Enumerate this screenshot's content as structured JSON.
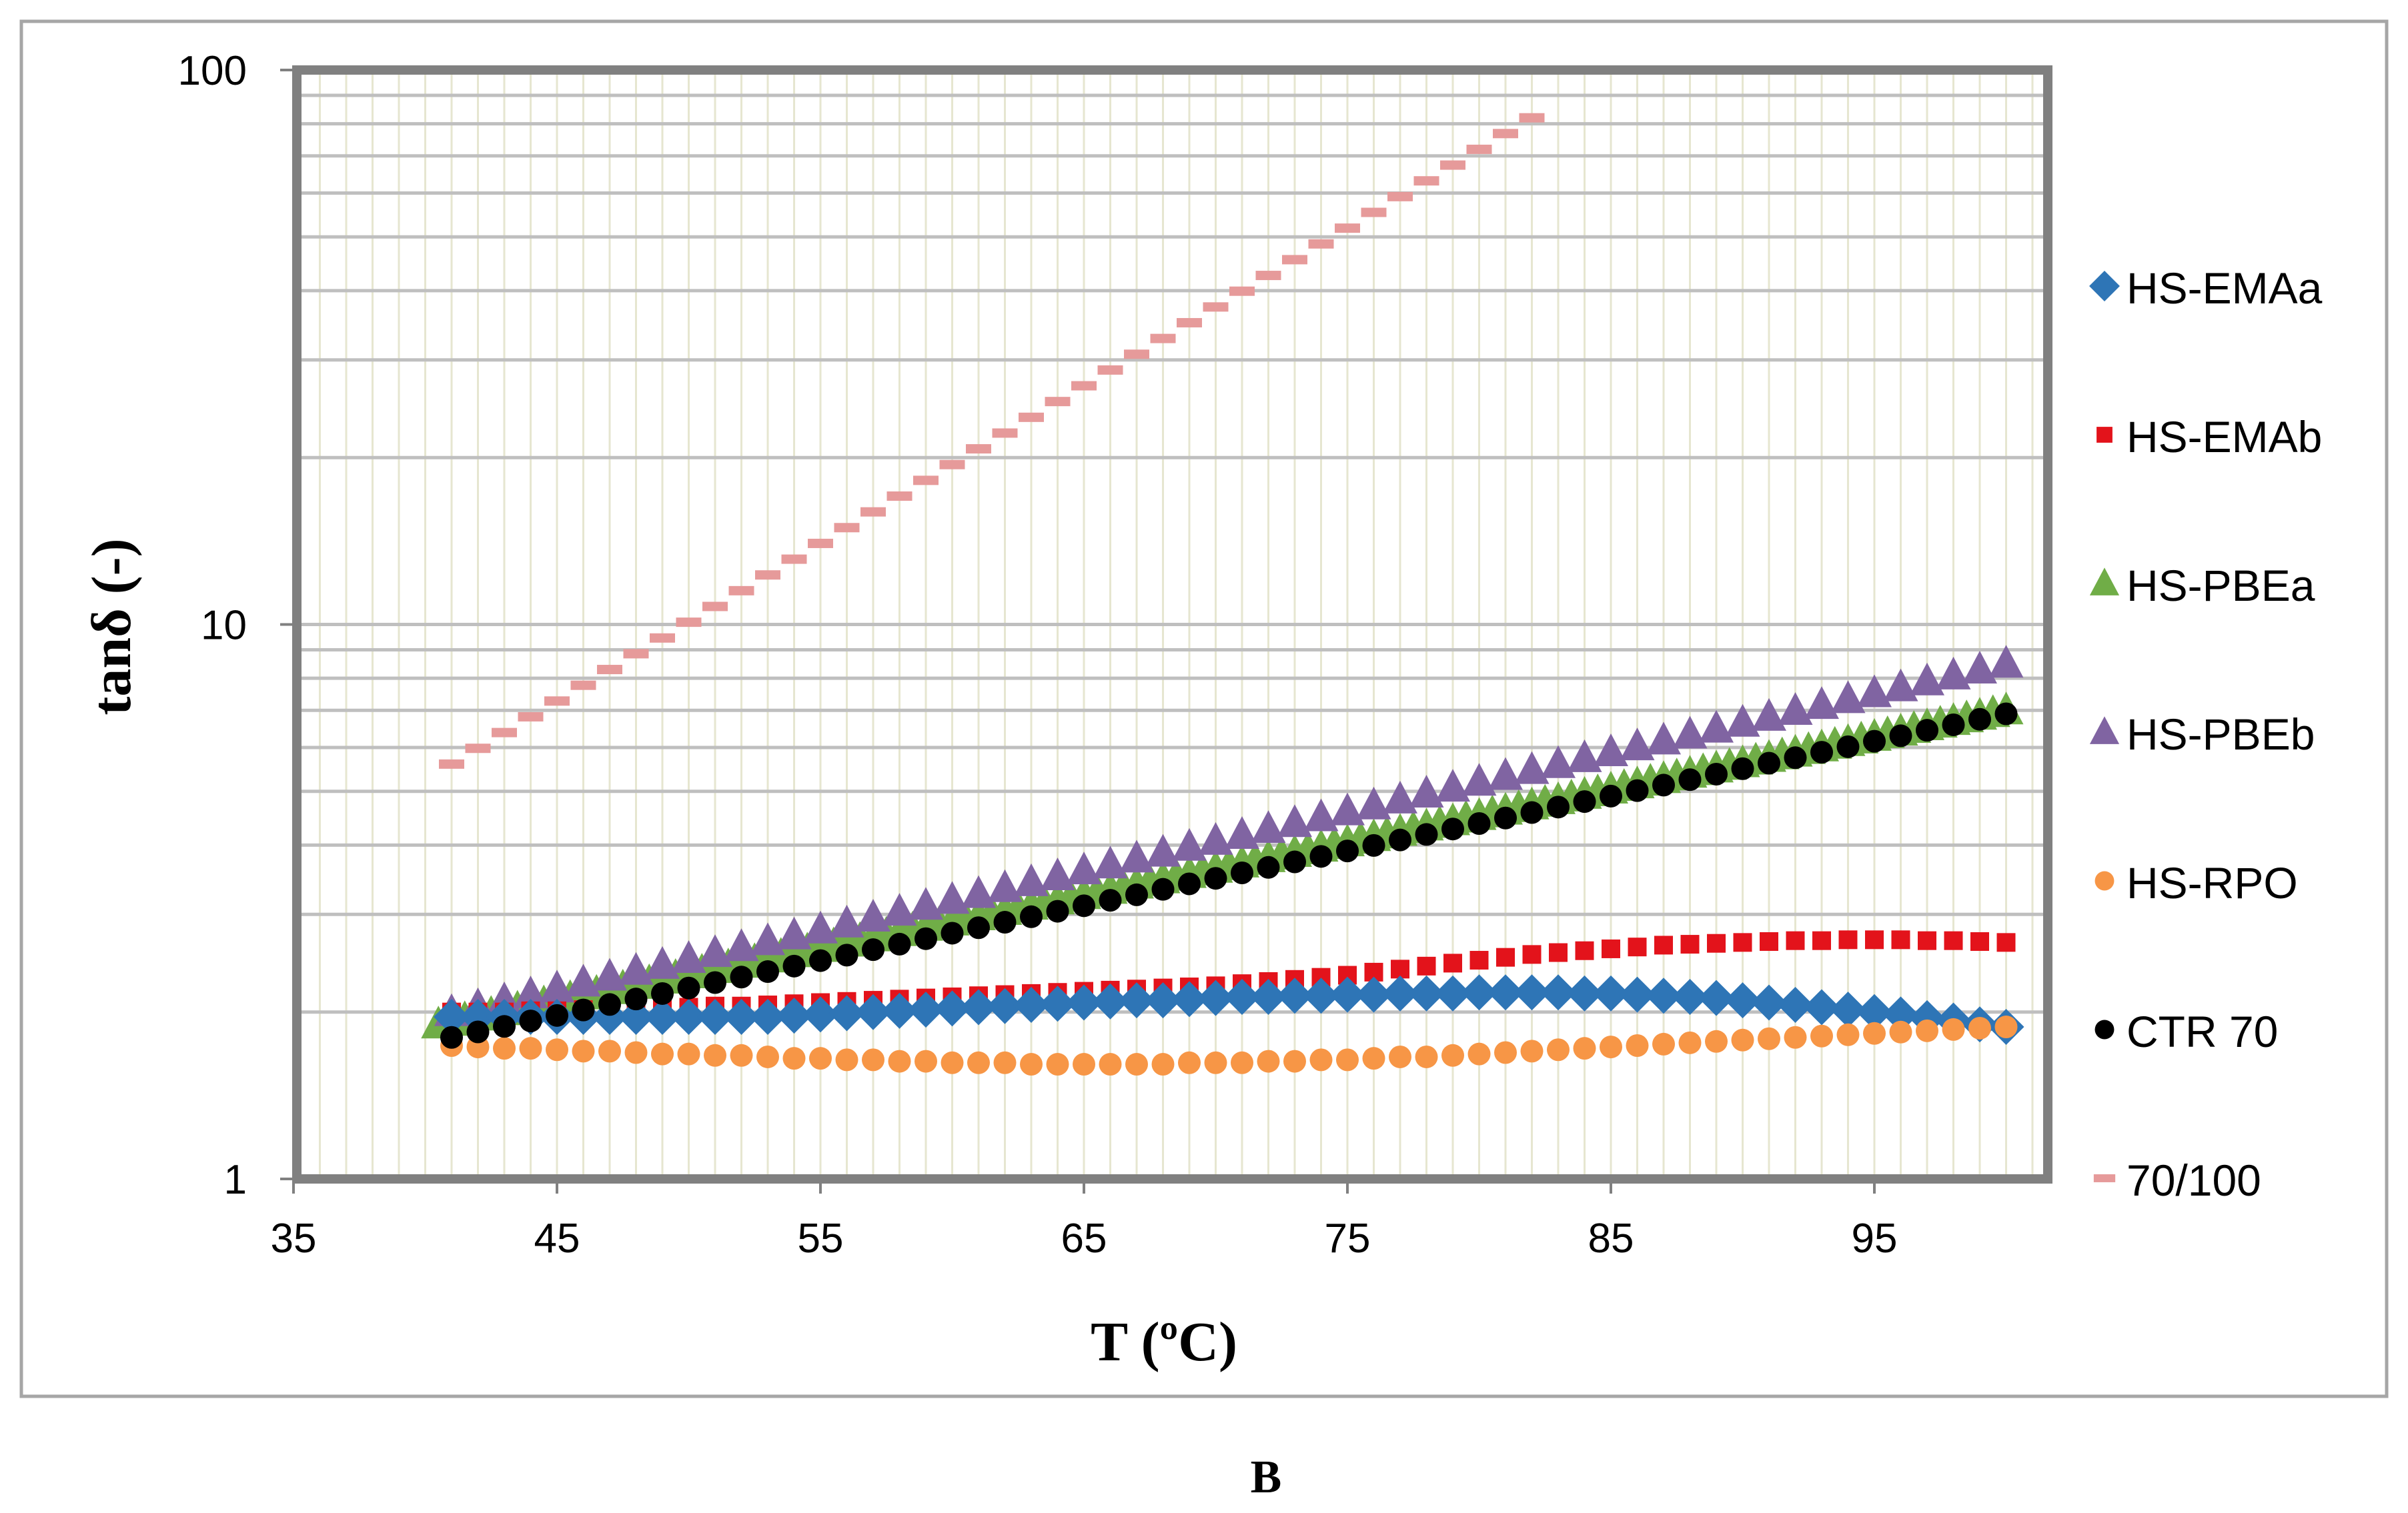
{
  "chart_data": {
    "type": "scatter",
    "title": "",
    "xlabel": "T (ºC)",
    "ylabel": "tanδ (-)",
    "panel_label": "B",
    "xlim": [
      35,
      103
    ],
    "ylim": [
      1,
      100
    ],
    "y_scale": "log",
    "x_ticks": [
      35,
      45,
      55,
      65,
      75,
      85,
      95
    ],
    "x_tick_labels": [
      "35",
      "45",
      "55",
      "65",
      "75",
      "85",
      "95"
    ],
    "y_ticks": [
      1,
      10,
      100
    ],
    "y_tick_labels": [
      "1",
      "10",
      "100"
    ],
    "grid": true,
    "legend_position": "right",
    "series": [
      {
        "name": "HS-EMAa",
        "marker": "diamond",
        "color": "#2e75b6",
        "x_start": 41,
        "x_end": 100,
        "x_step": 1,
        "y": [
          1.96,
          1.96,
          1.96,
          1.96,
          1.96,
          1.96,
          1.96,
          1.96,
          1.96,
          1.96,
          1.96,
          1.96,
          1.96,
          1.97,
          1.98,
          1.99,
          2.0,
          2.01,
          2.02,
          2.03,
          2.04,
          2.05,
          2.06,
          2.07,
          2.08,
          2.09,
          2.1,
          2.1,
          2.11,
          2.12,
          2.13,
          2.13,
          2.14,
          2.14,
          2.15,
          2.15,
          2.16,
          2.16,
          2.16,
          2.17,
          2.17,
          2.17,
          2.17,
          2.16,
          2.16,
          2.15,
          2.14,
          2.13,
          2.12,
          2.1,
          2.08,
          2.06,
          2.04,
          2.02,
          2.0,
          1.98,
          1.95,
          1.93,
          1.9,
          1.88
        ]
      },
      {
        "name": "HS-EMAb",
        "marker": "square",
        "color": "#e3131b",
        "x_start": 41,
        "x_end": 100,
        "x_step": 1,
        "y": [
          2.0,
          2.0,
          2.0,
          2.01,
          2.01,
          2.02,
          2.02,
          2.03,
          2.03,
          2.04,
          2.05,
          2.05,
          2.06,
          2.07,
          2.08,
          2.09,
          2.1,
          2.11,
          2.12,
          2.13,
          2.14,
          2.15,
          2.16,
          2.17,
          2.18,
          2.19,
          2.2,
          2.21,
          2.22,
          2.23,
          2.25,
          2.27,
          2.29,
          2.31,
          2.33,
          2.36,
          2.39,
          2.42,
          2.45,
          2.48,
          2.51,
          2.54,
          2.56,
          2.58,
          2.6,
          2.62,
          2.64,
          2.65,
          2.66,
          2.67,
          2.68,
          2.69,
          2.69,
          2.7,
          2.7,
          2.7,
          2.69,
          2.69,
          2.68,
          2.67
        ]
      },
      {
        "name": "HS-PBEa",
        "marker": "triangle",
        "color": "#70ad47",
        "x_start": 40.5,
        "x_end": 100,
        "x_step": 0.5,
        "y_start": 1.9,
        "y_end": 7.0
      },
      {
        "name": "HS-PBEb",
        "marker": "triangle",
        "color": "#8064a2",
        "x_start": 41,
        "x_end": 100,
        "x_step": 1,
        "y_start": 2.0,
        "y_end": 8.5
      },
      {
        "name": "HS-RPO",
        "marker": "circle",
        "color": "#f79646",
        "x_start": 41,
        "x_end": 100,
        "x_step": 1,
        "y": [
          1.74,
          1.73,
          1.72,
          1.72,
          1.71,
          1.7,
          1.7,
          1.69,
          1.68,
          1.68,
          1.67,
          1.67,
          1.66,
          1.65,
          1.65,
          1.64,
          1.64,
          1.63,
          1.63,
          1.62,
          1.62,
          1.62,
          1.61,
          1.61,
          1.61,
          1.61,
          1.61,
          1.61,
          1.62,
          1.62,
          1.62,
          1.63,
          1.63,
          1.64,
          1.64,
          1.65,
          1.66,
          1.66,
          1.67,
          1.68,
          1.69,
          1.7,
          1.71,
          1.72,
          1.73,
          1.74,
          1.75,
          1.76,
          1.77,
          1.78,
          1.79,
          1.8,
          1.81,
          1.82,
          1.83,
          1.84,
          1.85,
          1.86,
          1.87,
          1.88
        ]
      },
      {
        "name": "CTR 70",
        "marker": "circle",
        "color": "#000000",
        "x_start": 41,
        "x_end": 100,
        "x_step": 1,
        "y_start": 1.8,
        "y_end": 6.9
      },
      {
        "name": "70/100",
        "marker": "dash",
        "color": "#e69a9a",
        "x_start": 41,
        "x_end": 82,
        "x_step": 1,
        "y_start": 5.6,
        "y_end": 82
      }
    ]
  }
}
